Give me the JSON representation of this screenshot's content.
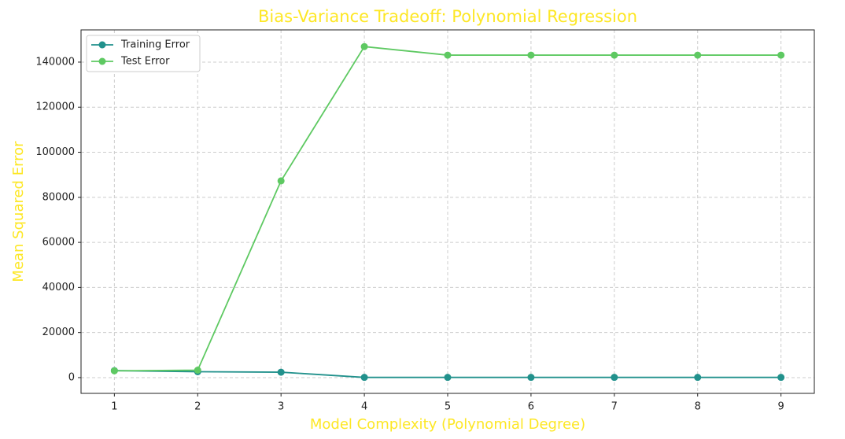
{
  "chart_data": {
    "type": "line",
    "title": "Bias-Variance Tradeoff: Polynomial Regression",
    "x_label": "Model Complexity (Polynomial Degree)",
    "y_label": "Mean Squared Error",
    "title_color": "#fde725",
    "x": [
      1,
      2,
      3,
      4,
      5,
      6,
      7,
      8,
      9
    ],
    "series": [
      {
        "name": "Training Error",
        "color": "#21918c",
        "values": [
          3100,
          2600,
          2400,
          100,
          100,
          100,
          100,
          100,
          100
        ]
      },
      {
        "name": "Test Error",
        "color": "#5ec962",
        "values": [
          3000,
          3300,
          87300,
          146900,
          143100,
          143100,
          143100,
          143100,
          143100
        ]
      }
    ],
    "xlim": [
      0.6,
      9.4
    ],
    "xticks": [
      1,
      2,
      3,
      4,
      5,
      6,
      7,
      8,
      9
    ],
    "ylim": [
      -7000,
      154300
    ],
    "yticks": [
      0,
      20000,
      40000,
      60000,
      80000,
      100000,
      120000,
      140000
    ],
    "grid": true,
    "legend": "upper-left"
  }
}
